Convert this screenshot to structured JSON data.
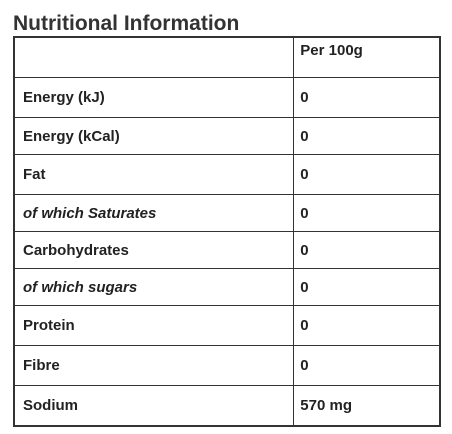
{
  "title": "Nutritional Information",
  "table": {
    "header": {
      "label": "",
      "value": "Per 100g"
    },
    "rows": [
      {
        "label": "Energy (kJ)",
        "value": "0"
      },
      {
        "label": "Energy (kCal)",
        "value": "0"
      },
      {
        "label": "Fat",
        "value": "0"
      },
      {
        "label": "of which Saturates",
        "value": "0"
      },
      {
        "label": "Carbohydrates",
        "value": "0"
      },
      {
        "label": "of which sugars",
        "value": "0"
      },
      {
        "label": "Protein",
        "value": "0"
      },
      {
        "label": "Fibre",
        "value": "0"
      },
      {
        "label": "Sodium",
        "value": "570 mg"
      }
    ]
  }
}
